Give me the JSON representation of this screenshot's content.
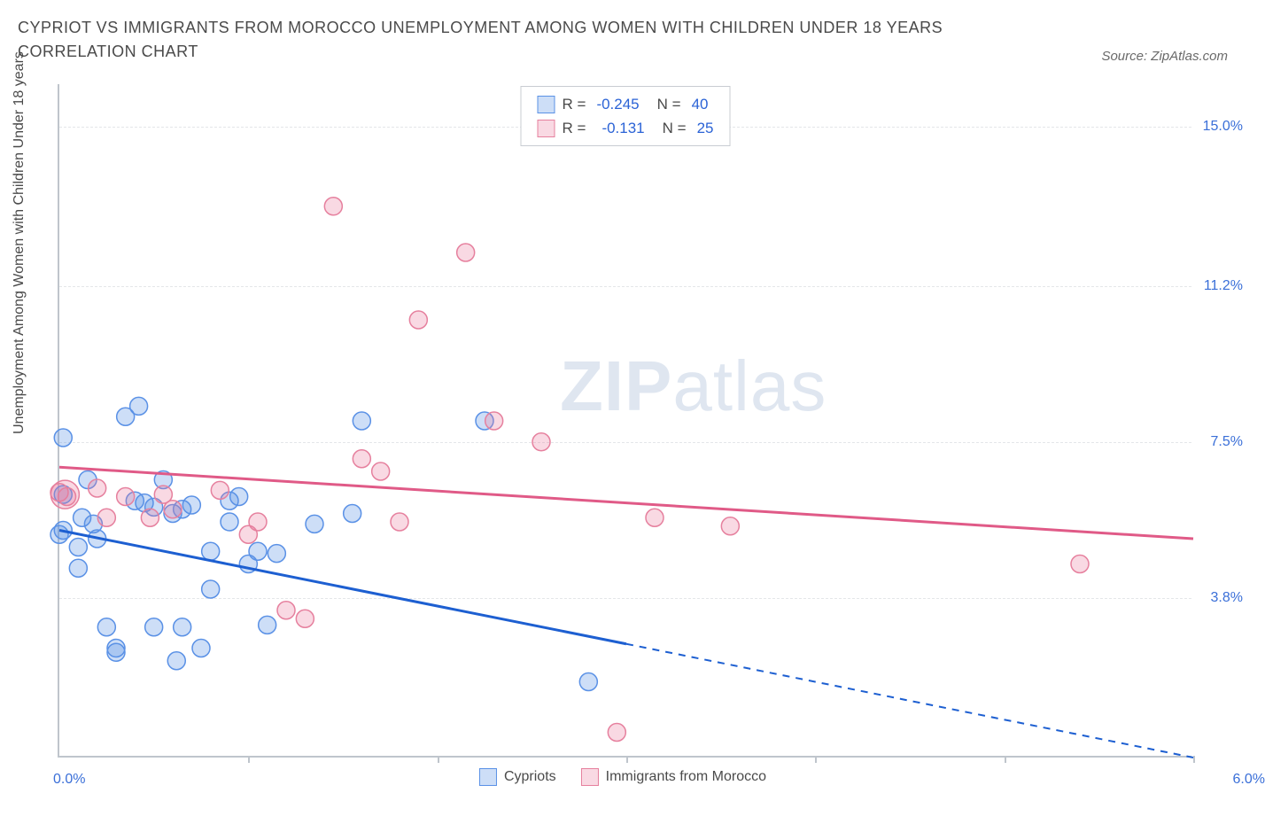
{
  "title": "CYPRIOT VS IMMIGRANTS FROM MOROCCO UNEMPLOYMENT AMONG WOMEN WITH CHILDREN UNDER 18 YEARS CORRELATION CHART",
  "source": "Source: ZipAtlas.com",
  "y_axis_label": "Unemployment Among Women with Children Under 18 years",
  "watermark_bold": "ZIP",
  "watermark_light": "atlas",
  "legend_stats": {
    "series_a": {
      "r_label": "R =",
      "r_value": "-0.245",
      "n_label": "N =",
      "n_value": "40"
    },
    "series_b": {
      "r_label": "R =",
      "r_value": "-0.131",
      "n_label": "N =",
      "n_value": "25"
    }
  },
  "bottom_legend": {
    "a": "Cypriots",
    "b": "Immigrants from Morocco"
  },
  "colors": {
    "series_a_fill": "rgba(90, 145, 230, 0.30)",
    "series_a_stroke": "#5a91e6",
    "series_a_line": "#1d5fd1",
    "series_b_fill": "rgba(235, 120, 155, 0.28)",
    "series_b_stroke": "#e6809e",
    "series_b_line": "#e05a87",
    "grid": "#e4e6e9",
    "axis": "#bfc5cc",
    "tick_text": "#3a6fd8"
  },
  "chart": {
    "type": "scatter",
    "xlim": [
      0,
      6
    ],
    "ylim": [
      0,
      16
    ],
    "x_ticks": [
      0,
      1,
      2,
      3,
      4,
      5,
      6
    ],
    "y_grid": [
      3.8,
      7.5,
      11.2,
      15.0
    ],
    "y_tick_labels": [
      "3.8%",
      "7.5%",
      "11.2%",
      "15.0%"
    ],
    "x_origin_label": "0.0%",
    "x_max_label": "6.0%",
    "marker_radius": 10,
    "series_a_points": [
      [
        0.0,
        5.3
      ],
      [
        0.02,
        5.4
      ],
      [
        0.02,
        7.6
      ],
      [
        0.02,
        6.25
      ],
      [
        0.1,
        4.5
      ],
      [
        0.1,
        5.0
      ],
      [
        0.12,
        5.7
      ],
      [
        0.15,
        6.6
      ],
      [
        0.2,
        5.2
      ],
      [
        0.25,
        3.1
      ],
      [
        0.3,
        2.5
      ],
      [
        0.3,
        2.6
      ],
      [
        0.35,
        8.1
      ],
      [
        0.4,
        6.1
      ],
      [
        0.42,
        8.35
      ],
      [
        0.45,
        6.05
      ],
      [
        0.5,
        5.95
      ],
      [
        0.5,
        3.1
      ],
      [
        0.55,
        6.6
      ],
      [
        0.6,
        5.8
      ],
      [
        0.62,
        2.3
      ],
      [
        0.65,
        5.9
      ],
      [
        0.65,
        3.1
      ],
      [
        0.7,
        6.0
      ],
      [
        0.75,
        2.6
      ],
      [
        0.8,
        4.9
      ],
      [
        0.8,
        4.0
      ],
      [
        0.9,
        5.6
      ],
      [
        0.9,
        6.1
      ],
      [
        0.95,
        6.2
      ],
      [
        1.0,
        4.6
      ],
      [
        1.05,
        4.9
      ],
      [
        1.1,
        3.15
      ],
      [
        1.15,
        4.85
      ],
      [
        1.35,
        5.55
      ],
      [
        1.55,
        5.8
      ],
      [
        1.6,
        8.0
      ],
      [
        2.25,
        8.0
      ],
      [
        2.8,
        1.8
      ],
      [
        0.18,
        5.55
      ]
    ],
    "series_b_points": [
      [
        0.0,
        6.3
      ],
      [
        0.04,
        6.2
      ],
      [
        0.2,
        6.4
      ],
      [
        0.25,
        5.7
      ],
      [
        0.35,
        6.2
      ],
      [
        0.48,
        5.7
      ],
      [
        0.55,
        6.25
      ],
      [
        0.6,
        5.9
      ],
      [
        1.0,
        5.3
      ],
      [
        1.05,
        5.6
      ],
      [
        1.2,
        3.5
      ],
      [
        1.3,
        3.3
      ],
      [
        1.45,
        13.1
      ],
      [
        1.6,
        7.1
      ],
      [
        1.7,
        6.8
      ],
      [
        1.8,
        5.6
      ],
      [
        1.9,
        10.4
      ],
      [
        2.15,
        12.0
      ],
      [
        2.3,
        8.0
      ],
      [
        2.55,
        7.5
      ],
      [
        2.95,
        0.6
      ],
      [
        3.15,
        5.7
      ],
      [
        3.55,
        5.5
      ],
      [
        5.4,
        4.6
      ],
      [
        0.85,
        6.35
      ]
    ],
    "series_a_line": {
      "x1": 0,
      "y1": 5.4,
      "x2_solid": 3.0,
      "y2_solid": 2.7,
      "x2": 6.0,
      "y2": 0.0
    },
    "series_b_line": {
      "x1": 0,
      "y1": 6.9,
      "x2": 6.0,
      "y2": 5.2
    }
  }
}
